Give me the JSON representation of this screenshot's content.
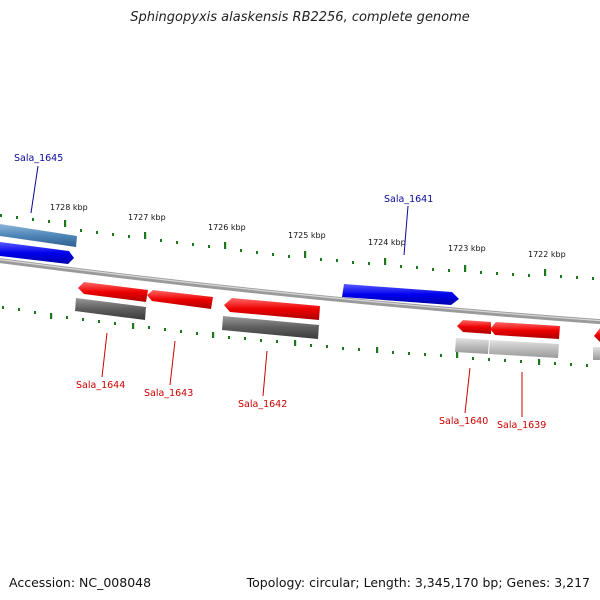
{
  "title": "Sphingopyxis alaskensis RB2256, complete genome",
  "footer": {
    "accession": "Accession: NC_008048",
    "summary": "Topology: circular; Length: 3,345,170 bp; Genes: 3,217"
  },
  "colors": {
    "forward_gene": "#0000ee",
    "reverse_gene": "#ee0000",
    "backbone": "#888888",
    "ticks": "#1a7a1a",
    "label_forward": "#0a0a99",
    "label_reverse": "#cc0000"
  },
  "scale_labels": [
    "1728 kbp",
    "1727 kbp",
    "1726 kbp",
    "1725 kbp",
    "1724 kbp",
    "1723 kbp",
    "1722 kbp"
  ],
  "gene_labels": {
    "forward": [
      "Sala_1645",
      "Sala_1641"
    ],
    "reverse": [
      "Sala_1644",
      "Sala_1643",
      "Sala_1642",
      "Sala_1640",
      "Sala_1639"
    ]
  }
}
